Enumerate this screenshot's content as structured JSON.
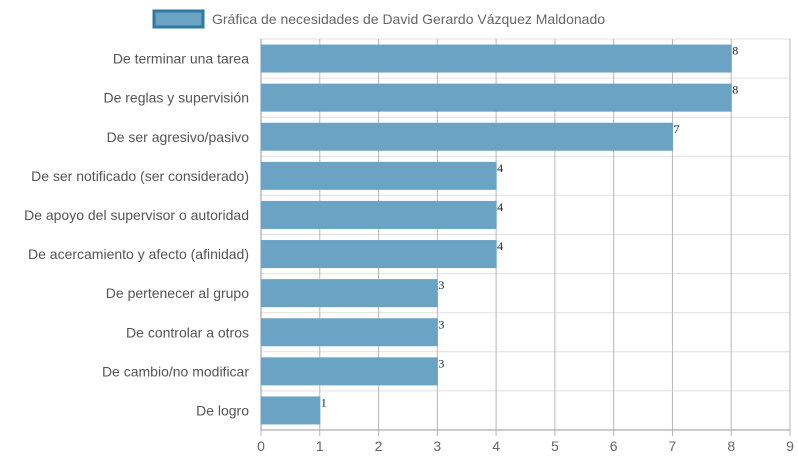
{
  "chart_data": {
    "type": "bar",
    "orientation": "horizontal",
    "title": "",
    "xlabel": "",
    "ylabel": "",
    "categories": [
      "De terminar una tarea",
      "De reglas y supervisión",
      "De ser agresivo/pasivo",
      "De ser notificado (ser considerado)",
      "De apoyo del supervisor o autoridad",
      "De acercamiento y afecto (afinidad)",
      "De pertenecer al grupo",
      "De controlar a otros",
      "De cambio/no modificar",
      "De logro"
    ],
    "series": [
      {
        "name": "Gráfica de necesidades de David Gerardo Vázquez Maldonado",
        "values": [
          8,
          8,
          7,
          4,
          4,
          4,
          3,
          3,
          3,
          1
        ],
        "color": "#6aa3c4",
        "border_color": "#2f78a3"
      }
    ],
    "xlim": [
      0,
      9
    ],
    "x_ticks": [
      "0",
      "1",
      "2",
      "3",
      "4",
      "5",
      "6",
      "7",
      "8",
      "9"
    ],
    "grid": true,
    "legend_position": "top"
  }
}
